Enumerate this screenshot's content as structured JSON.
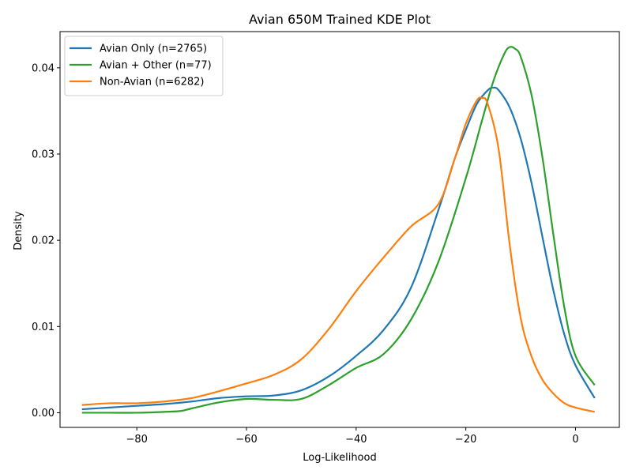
{
  "chart_data": {
    "type": "line",
    "title": "Avian 650M Trained KDE Plot",
    "xlabel": "Log-Likelihood",
    "ylabel": "Density",
    "xlim": [
      -94,
      8
    ],
    "ylim": [
      -0.0017,
      0.0442
    ],
    "xticks": [
      -80,
      -60,
      -40,
      -20,
      0
    ],
    "xtick_labels": [
      "−80",
      "−60",
      "−40",
      "−20",
      "0"
    ],
    "yticks": [
      0.0,
      0.01,
      0.02,
      0.03,
      0.04
    ],
    "ytick_labels": [
      "0.00",
      "0.01",
      "0.02",
      "0.03",
      "0.04"
    ],
    "grid": false,
    "legend_position": "top-left",
    "series": [
      {
        "name": "Avian Only (n=2765)",
        "color": "#1f77b4",
        "x": [
          -90,
          -85,
          -80,
          -75,
          -70,
          -65,
          -60,
          -55,
          -50,
          -45,
          -40,
          -35,
          -30,
          -25,
          -22,
          -20,
          -18,
          -16,
          -15,
          -14,
          -12,
          -10,
          -8,
          -6,
          -4,
          -2,
          0,
          3.5
        ],
        "y": [
          0.0004,
          0.0006,
          0.0008,
          0.001,
          0.0013,
          0.0017,
          0.0019,
          0.002,
          0.0026,
          0.0042,
          0.0066,
          0.0096,
          0.0145,
          0.0235,
          0.0295,
          0.0328,
          0.0358,
          0.0374,
          0.0377,
          0.0374,
          0.0354,
          0.0318,
          0.0266,
          0.0203,
          0.0141,
          0.009,
          0.0055,
          0.0017
        ]
      },
      {
        "name": "Avian + Other (n=77)",
        "color": "#2ca02c",
        "x": [
          -90,
          -85,
          -80,
          -75,
          -72,
          -70,
          -65,
          -60,
          -55,
          -50,
          -45,
          -40,
          -35,
          -30,
          -25,
          -20,
          -17,
          -15,
          -13,
          -12,
          -11,
          -10,
          -8,
          -6,
          -4,
          -2,
          0,
          3.5
        ],
        "y": [
          0.0,
          0.0,
          0.0,
          0.0001,
          0.0002,
          0.0005,
          0.0012,
          0.0016,
          0.0015,
          0.0016,
          0.0032,
          0.0052,
          0.0068,
          0.0108,
          0.0175,
          0.0272,
          0.034,
          0.0384,
          0.0416,
          0.0424,
          0.0422,
          0.0413,
          0.0368,
          0.0295,
          0.0205,
          0.0121,
          0.0066,
          0.0032
        ]
      },
      {
        "name": "Non-Avian (n=6282)",
        "color": "#ff7f0e",
        "x": [
          -90,
          -85,
          -80,
          -75,
          -70,
          -65,
          -60,
          -55,
          -50,
          -45,
          -40,
          -35,
          -30,
          -25,
          -22,
          -20,
          -18,
          -17,
          -16,
          -14,
          -12,
          -10,
          -8,
          -6,
          -4,
          -2,
          0,
          3.5
        ],
        "y": [
          0.0009,
          0.0011,
          0.0011,
          0.0013,
          0.0017,
          0.0025,
          0.0034,
          0.0044,
          0.0062,
          0.0097,
          0.0141,
          0.018,
          0.0216,
          0.0242,
          0.0295,
          0.0335,
          0.0362,
          0.0365,
          0.0358,
          0.0305,
          0.0195,
          0.011,
          0.0065,
          0.0038,
          0.0022,
          0.0011,
          0.0006,
          0.0001
        ]
      }
    ]
  }
}
